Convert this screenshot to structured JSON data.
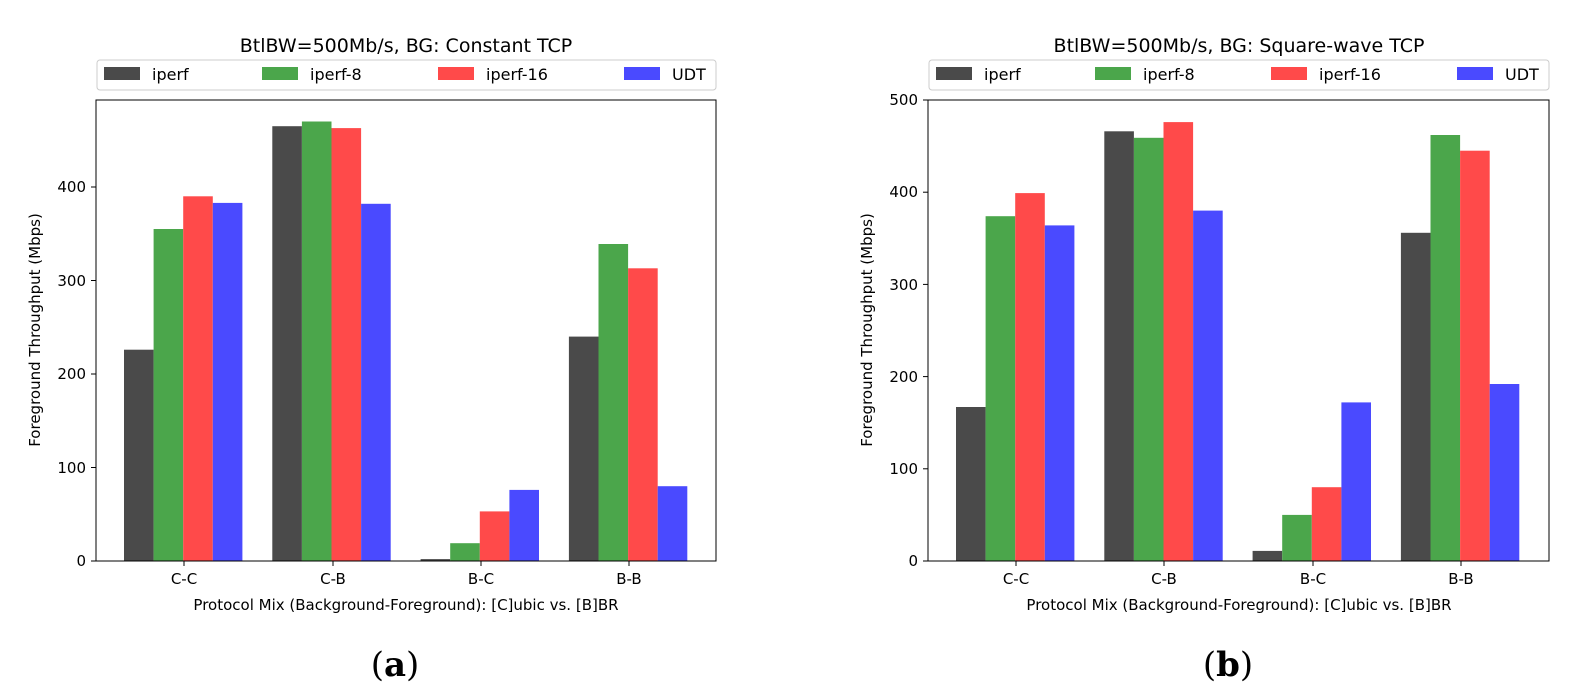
{
  "chart_data": [
    {
      "type": "bar",
      "title": "BtlBW=500Mb/s, BG: Constant TCP",
      "xlabel": "Protocol Mix (Background-Foreground): [C]ubic vs. [B]BR",
      "ylabel": "Foreground Throughput (Mbps)",
      "categories": [
        "C-C",
        "C-B",
        "B-C",
        "B-B"
      ],
      "ylim": [
        0,
        493
      ],
      "yticks": [
        0,
        100,
        200,
        300,
        400
      ],
      "legend_position": "top",
      "series": [
        {
          "name": "iperf",
          "color": "#4a4a4a",
          "values": [
            226,
            465,
            2,
            240
          ]
        },
        {
          "name": "iperf-8",
          "color": "#4ba64b",
          "values": [
            355,
            470,
            19,
            339
          ]
        },
        {
          "name": "iperf-16",
          "color": "#ff4a4a",
          "values": [
            390,
            463,
            53,
            313
          ]
        },
        {
          "name": "UDT",
          "color": "#4a4aff",
          "values": [
            383,
            382,
            76,
            80
          ]
        }
      ],
      "caption": {
        "open": "(",
        "letter": "a",
        "close": ")"
      }
    },
    {
      "type": "bar",
      "title": "BtlBW=500Mb/s, BG: Square-wave TCP",
      "xlabel": "Protocol Mix (Background-Foreground): [C]ubic vs. [B]BR",
      "ylabel": "Foreground Throughput (Mbps)",
      "categories": [
        "C-C",
        "C-B",
        "B-C",
        "B-B"
      ],
      "ylim": [
        0,
        500
      ],
      "yticks": [
        0,
        100,
        200,
        300,
        400,
        500
      ],
      "legend_position": "top",
      "series": [
        {
          "name": "iperf",
          "color": "#4a4a4a",
          "values": [
            167,
            466,
            11,
            356
          ]
        },
        {
          "name": "iperf-8",
          "color": "#4ba64b",
          "values": [
            374,
            459,
            50,
            462
          ]
        },
        {
          "name": "iperf-16",
          "color": "#ff4a4a",
          "values": [
            399,
            476,
            80,
            445
          ]
        },
        {
          "name": "UDT",
          "color": "#4a4aff",
          "values": [
            364,
            380,
            172,
            192
          ]
        }
      ],
      "caption": {
        "open": "(",
        "letter": "b",
        "close": ")"
      }
    }
  ]
}
